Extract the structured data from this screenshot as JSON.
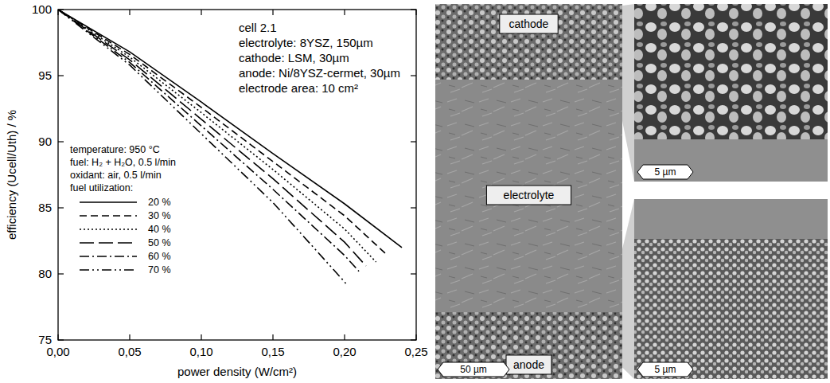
{
  "chart_data": {
    "type": "line",
    "x_label": "power density (W/cm²)",
    "y_label": "efficiency (Ucell/Uth) / %",
    "xlim": [
      0,
      0.25
    ],
    "xticks": [
      {
        "value": 0,
        "label": "0,00"
      },
      {
        "value": 0.05,
        "label": "0,05"
      },
      {
        "value": 0.1,
        "label": "0,10"
      },
      {
        "value": 0.15,
        "label": "0,15"
      },
      {
        "value": 0.2,
        "label": "0,20"
      },
      {
        "value": 0.25,
        "label": "0,25"
      }
    ],
    "ylim": [
      75,
      100
    ],
    "yticks": [
      75,
      80,
      85,
      90,
      95,
      100
    ],
    "grid": false,
    "legend": "left",
    "legend_title": "fuel utilization:",
    "annotations": [
      "cell 2.1",
      "electrolyte: 8YSZ, 150µm",
      "cathode: LSM, 30µm",
      "anode: Ni/8YSZ-cermet, 30µm",
      "electrode area: 10 cm²"
    ],
    "conditions": [
      "temperature: 950 °C",
      "fuel: H₂ + H₂O, 0.5 l/min",
      "oxidant: air, 0.5 l/min"
    ],
    "series": [
      {
        "name": "20 %",
        "color": "#000000",
        "line_style": "solid",
        "x": [
          0,
          0.05,
          0.1,
          0.15,
          0.2,
          0.24
        ],
        "values": [
          100,
          96.8,
          93.0,
          89.1,
          85.3,
          82.0
        ]
      },
      {
        "name": "30 %",
        "color": "#000000",
        "line_style": "dashed",
        "x": [
          0,
          0.05,
          0.1,
          0.15,
          0.2,
          0.23
        ],
        "values": [
          100,
          96.6,
          92.6,
          88.5,
          84.4,
          81.4
        ]
      },
      {
        "name": "40 %",
        "color": "#000000",
        "line_style": "dotted",
        "x": [
          0,
          0.05,
          0.1,
          0.15,
          0.2,
          0.222
        ],
        "values": [
          100,
          96.4,
          92.2,
          87.9,
          83.4,
          80.9
        ]
      },
      {
        "name": "50 %",
        "color": "#000000",
        "line_style": "long_dashed",
        "x": [
          0,
          0.05,
          0.1,
          0.15,
          0.2,
          0.215
        ],
        "values": [
          100,
          96.2,
          91.7,
          87.2,
          82.4,
          80.6
        ]
      },
      {
        "name": "60 %",
        "color": "#000000",
        "line_style": "dash_dot",
        "x": [
          0,
          0.05,
          0.1,
          0.15,
          0.2,
          0.21
        ],
        "values": [
          100,
          96.0,
          91.2,
          86.4,
          81.4,
          80.2
        ]
      },
      {
        "name": "70 %",
        "color": "#000000",
        "line_style": "dash_dot_dot",
        "x": [
          0,
          0.05,
          0.1,
          0.15,
          0.2,
          0.202
        ],
        "values": [
          100,
          95.8,
          90.6,
          85.4,
          79.4,
          79.1
        ]
      }
    ]
  },
  "micrographs": {
    "layers": [
      "cathode",
      "electrolyte",
      "anode"
    ],
    "scale_bars": [
      "50 µm",
      "5 µm",
      "5 µm"
    ]
  }
}
